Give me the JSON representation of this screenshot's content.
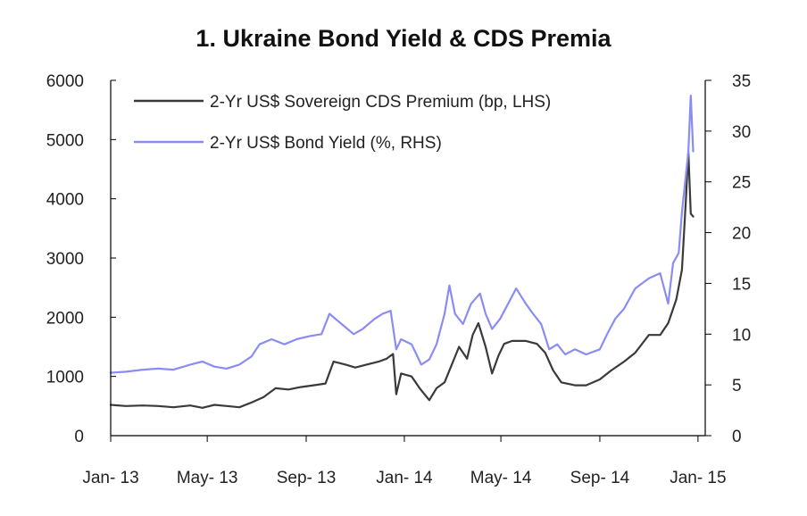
{
  "chart_data": {
    "type": "line",
    "title": "1. Ukraine Bond Yield & CDS Premia",
    "x_tick_labels": [
      "Jan- 13",
      "May- 13",
      "Sep- 13",
      "Jan- 14",
      "May- 14",
      "Sep- 14",
      "Jan- 15"
    ],
    "x_tick_dates": [
      "2013-01-01",
      "2013-05-01",
      "2013-09-01",
      "2014-01-01",
      "2014-05-01",
      "2014-09-01",
      "2015-01-01"
    ],
    "x_range": [
      "2013-01-01",
      "2015-01-10"
    ],
    "left_axis": {
      "ylim": [
        0,
        6000
      ],
      "ticks": [
        0,
        1000,
        2000,
        3000,
        4000,
        5000,
        6000
      ]
    },
    "right_axis": {
      "ylim": [
        0,
        35
      ],
      "ticks": [
        0,
        5,
        10,
        15,
        20,
        25,
        30,
        35
      ]
    },
    "grid": false,
    "legend_position": "top-left",
    "series": [
      {
        "name": "2-Yr US$ Sovereign CDS Premium (bp, LHS)",
        "axis": "left",
        "color": "#3a3a3a",
        "points": [
          [
            "2013-01-01",
            520
          ],
          [
            "2013-01-20",
            500
          ],
          [
            "2013-02-10",
            510
          ],
          [
            "2013-03-01",
            500
          ],
          [
            "2013-03-20",
            480
          ],
          [
            "2013-04-10",
            510
          ],
          [
            "2013-04-25",
            470
          ],
          [
            "2013-05-10",
            520
          ],
          [
            "2013-05-25",
            500
          ],
          [
            "2013-06-10",
            480
          ],
          [
            "2013-06-25",
            560
          ],
          [
            "2013-07-10",
            650
          ],
          [
            "2013-07-25",
            800
          ],
          [
            "2013-08-10",
            780
          ],
          [
            "2013-08-25",
            820
          ],
          [
            "2013-09-10",
            850
          ],
          [
            "2013-09-25",
            880
          ],
          [
            "2013-10-05",
            1250
          ],
          [
            "2013-10-20",
            1200
          ],
          [
            "2013-11-01",
            1150
          ],
          [
            "2013-11-15",
            1200
          ],
          [
            "2013-11-30",
            1250
          ],
          [
            "2013-12-10",
            1300
          ],
          [
            "2013-12-18",
            1380
          ],
          [
            "2013-12-22",
            700
          ],
          [
            "2013-12-28",
            1050
          ],
          [
            "2014-01-10",
            1000
          ],
          [
            "2014-01-20",
            800
          ],
          [
            "2014-02-01",
            600
          ],
          [
            "2014-02-10",
            800
          ],
          [
            "2014-02-20",
            900
          ],
          [
            "2014-03-01",
            1200
          ],
          [
            "2014-03-10",
            1500
          ],
          [
            "2014-03-20",
            1300
          ],
          [
            "2014-03-27",
            1700
          ],
          [
            "2014-04-03",
            1900
          ],
          [
            "2014-04-12",
            1500
          ],
          [
            "2014-04-20",
            1050
          ],
          [
            "2014-04-28",
            1350
          ],
          [
            "2014-05-05",
            1550
          ],
          [
            "2014-05-15",
            1600
          ],
          [
            "2014-06-01",
            1600
          ],
          [
            "2014-06-15",
            1550
          ],
          [
            "2014-06-25",
            1400
          ],
          [
            "2014-07-05",
            1100
          ],
          [
            "2014-07-15",
            900
          ],
          [
            "2014-08-01",
            850
          ],
          [
            "2014-08-15",
            850
          ],
          [
            "2014-09-01",
            950
          ],
          [
            "2014-09-15",
            1100
          ],
          [
            "2014-10-01",
            1250
          ],
          [
            "2014-10-15",
            1400
          ],
          [
            "2014-11-01",
            1700
          ],
          [
            "2014-11-15",
            1700
          ],
          [
            "2014-11-25",
            1900
          ],
          [
            "2014-12-05",
            2300
          ],
          [
            "2014-12-12",
            2800
          ],
          [
            "2014-12-17",
            4000
          ],
          [
            "2014-12-20",
            4800
          ],
          [
            "2014-12-23",
            3750
          ],
          [
            "2014-12-26",
            3700
          ]
        ]
      },
      {
        "name": "2-Yr US$ Bond Yield (%, RHS)",
        "axis": "right",
        "color": "#8a8cf4",
        "points": [
          [
            "2013-01-01",
            6.2
          ],
          [
            "2013-01-20",
            6.3
          ],
          [
            "2013-02-10",
            6.5
          ],
          [
            "2013-03-01",
            6.6
          ],
          [
            "2013-03-20",
            6.5
          ],
          [
            "2013-04-10",
            7.0
          ],
          [
            "2013-04-25",
            7.3
          ],
          [
            "2013-05-10",
            6.8
          ],
          [
            "2013-05-25",
            6.6
          ],
          [
            "2013-06-10",
            7.0
          ],
          [
            "2013-06-25",
            7.8
          ],
          [
            "2013-07-05",
            9.0
          ],
          [
            "2013-07-20",
            9.5
          ],
          [
            "2013-08-05",
            9.0
          ],
          [
            "2013-08-20",
            9.5
          ],
          [
            "2013-09-05",
            9.8
          ],
          [
            "2013-09-20",
            10.0
          ],
          [
            "2013-09-30",
            12.0
          ],
          [
            "2013-10-15",
            11.0
          ],
          [
            "2013-10-30",
            10.0
          ],
          [
            "2013-11-10",
            10.5
          ],
          [
            "2013-11-25",
            11.5
          ],
          [
            "2013-12-05",
            12.0
          ],
          [
            "2013-12-15",
            12.3
          ],
          [
            "2013-12-22",
            8.5
          ],
          [
            "2013-12-28",
            9.5
          ],
          [
            "2014-01-10",
            9.0
          ],
          [
            "2014-01-22",
            7.0
          ],
          [
            "2014-02-01",
            7.5
          ],
          [
            "2014-02-10",
            9.0
          ],
          [
            "2014-02-20",
            12.0
          ],
          [
            "2014-02-26",
            14.8
          ],
          [
            "2014-03-05",
            12.0
          ],
          [
            "2014-03-15",
            11.0
          ],
          [
            "2014-03-25",
            13.0
          ],
          [
            "2014-04-05",
            14.0
          ],
          [
            "2014-04-12",
            12.0
          ],
          [
            "2014-04-20",
            10.5
          ],
          [
            "2014-04-30",
            11.5
          ],
          [
            "2014-05-10",
            13.0
          ],
          [
            "2014-05-20",
            14.5
          ],
          [
            "2014-06-01",
            13.0
          ],
          [
            "2014-06-10",
            12.0
          ],
          [
            "2014-06-20",
            11.0
          ],
          [
            "2014-06-30",
            8.5
          ],
          [
            "2014-07-10",
            9.0
          ],
          [
            "2014-07-20",
            8.0
          ],
          [
            "2014-08-01",
            8.5
          ],
          [
            "2014-08-15",
            8.0
          ],
          [
            "2014-09-01",
            8.5
          ],
          [
            "2014-09-10",
            10.0
          ],
          [
            "2014-09-20",
            11.5
          ],
          [
            "2014-10-01",
            12.5
          ],
          [
            "2014-10-15",
            14.5
          ],
          [
            "2014-11-01",
            15.5
          ],
          [
            "2014-11-15",
            16.0
          ],
          [
            "2014-11-25",
            13.0
          ],
          [
            "2014-12-01",
            17.0
          ],
          [
            "2014-12-08",
            18.0
          ],
          [
            "2014-12-12",
            22.0
          ],
          [
            "2014-12-16",
            25.0
          ],
          [
            "2014-12-20",
            28.0
          ],
          [
            "2014-12-23",
            33.5
          ],
          [
            "2014-12-26",
            28.0
          ]
        ]
      }
    ]
  }
}
